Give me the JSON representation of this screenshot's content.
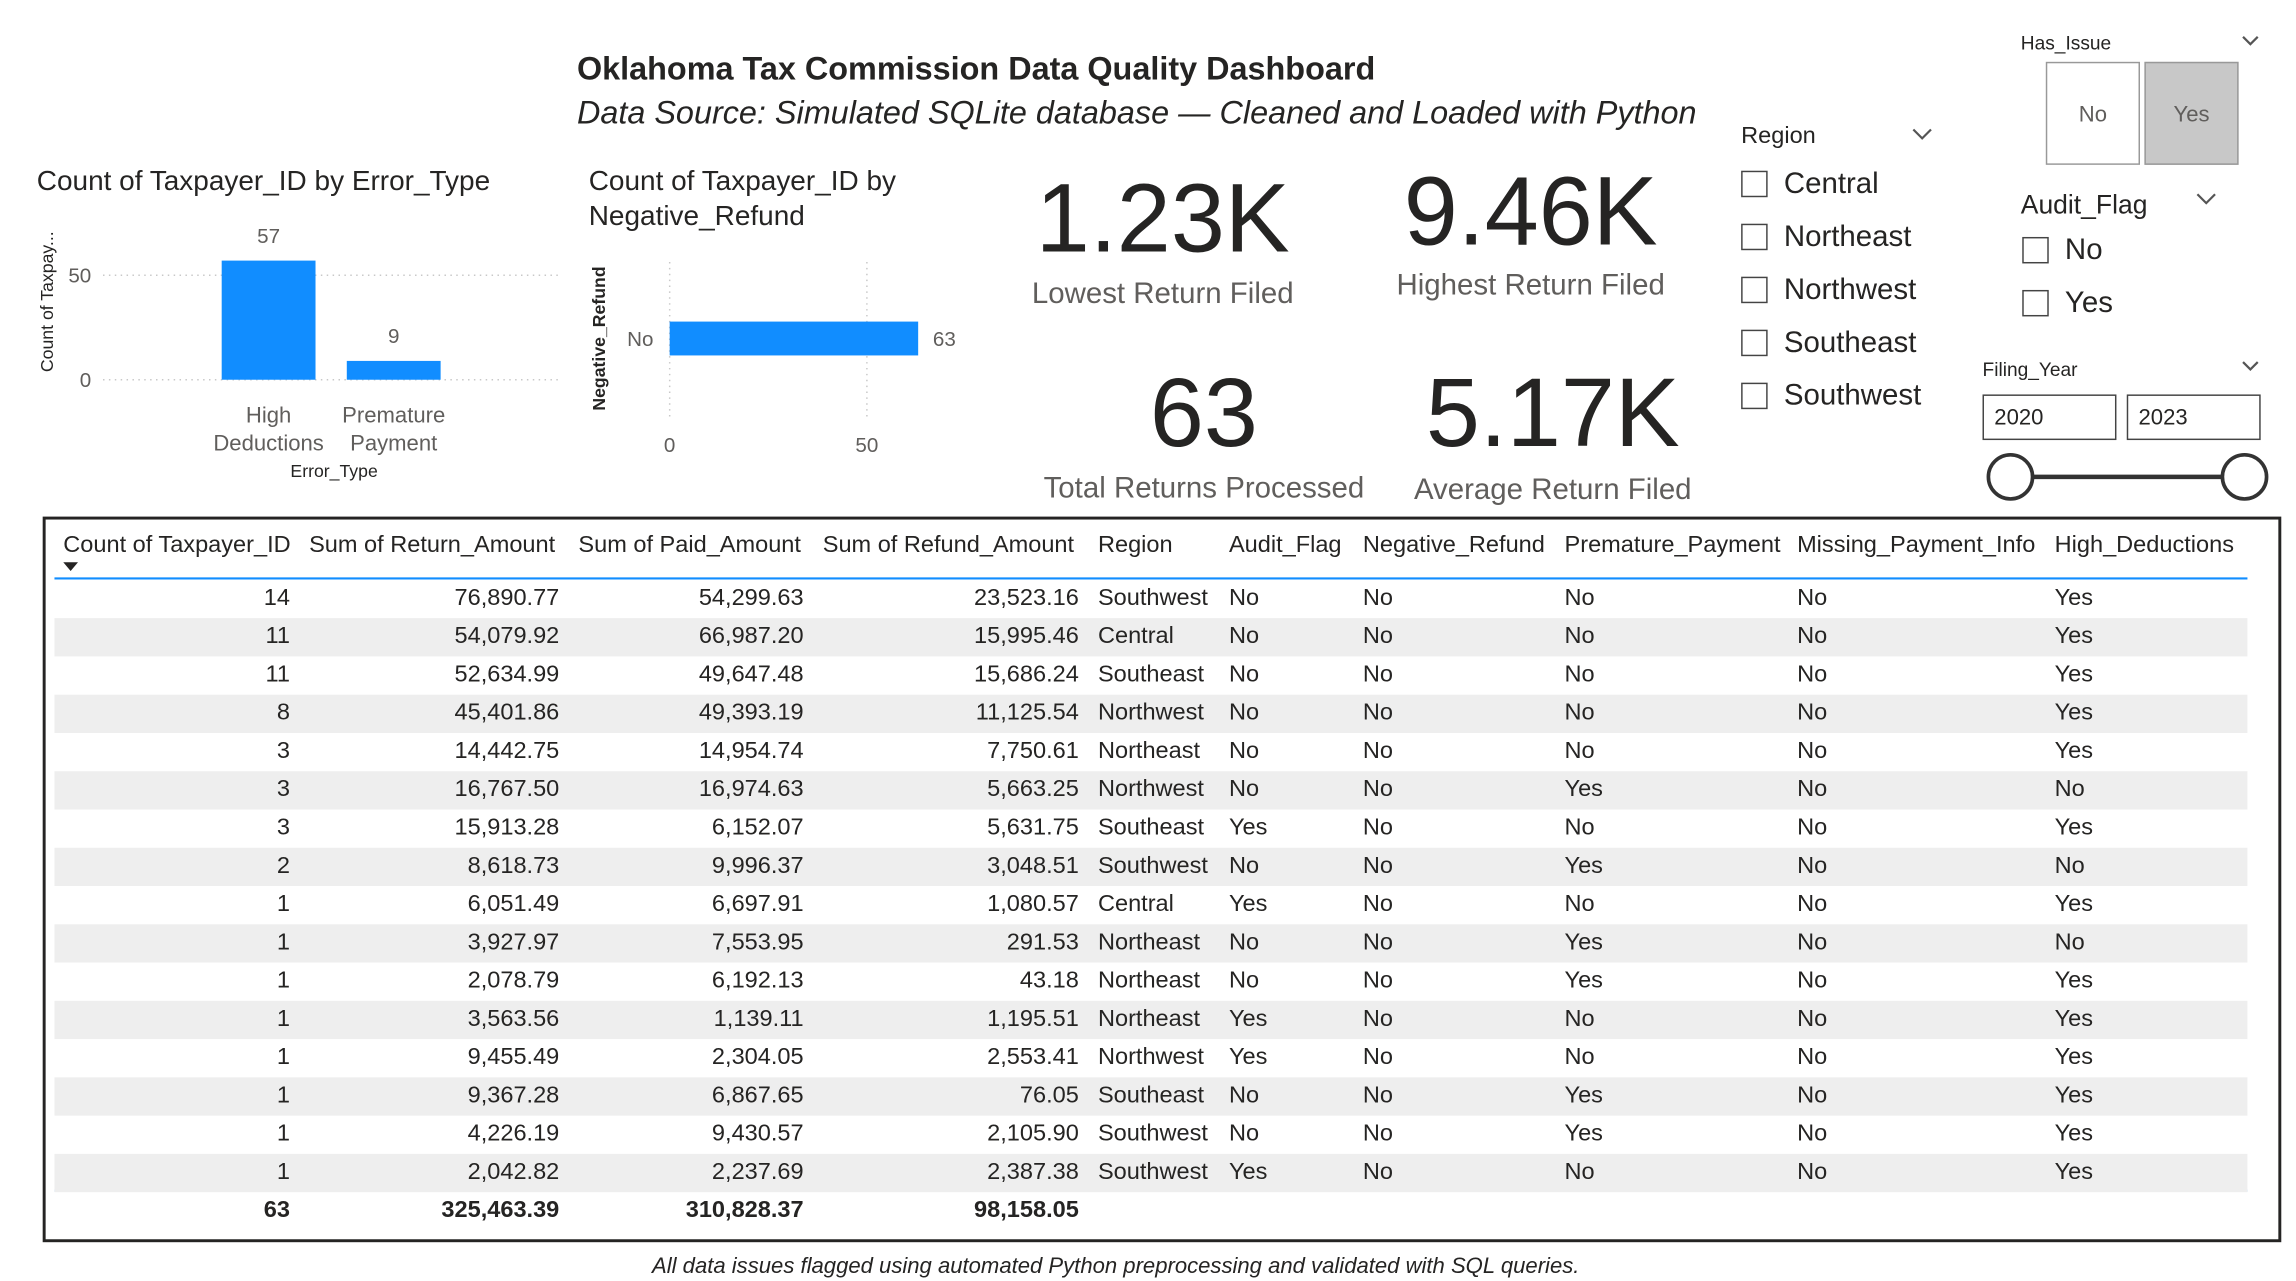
{
  "header": {
    "title": "Oklahoma Tax Commission Data Quality Dashboard",
    "subtitle": "Data Source: Simulated SQLite database — Cleaned and Loaded with Python"
  },
  "chart_data": [
    {
      "type": "bar",
      "title": "Count of Taxpayer_ID by Error_Type",
      "x_label": "Error_Type",
      "y_label": "Count of Taxpay...",
      "categories": [
        "High Deductions",
        "Premature Payment"
      ],
      "values": [
        57,
        9
      ],
      "color": "#118DFF",
      "ylim": [
        0,
        60
      ],
      "yticks": [
        0,
        50
      ],
      "grid": true,
      "data_labels": true
    },
    {
      "type": "bar",
      "orientation": "horizontal",
      "title": "Count of Taxpayer_ID by Negative_Refund",
      "y_label": "Negative_Refund",
      "categories": [
        "No"
      ],
      "values": [
        63
      ],
      "color": "#118DFF",
      "xlim": [
        0,
        65
      ],
      "xticks": [
        0,
        50
      ],
      "grid": true,
      "data_labels": true
    }
  ],
  "cards": [
    {
      "value": "1.23K",
      "label": "Lowest Return Filed"
    },
    {
      "value": "9.46K",
      "label": "Highest Return Filed"
    },
    {
      "value": "63",
      "label": "Total Returns Processed"
    },
    {
      "value": "5.17K",
      "label": "Average Return Filed"
    }
  ],
  "slicers": {
    "has_issue": {
      "title": "Has_Issue",
      "options": [
        "No",
        "Yes"
      ],
      "selected": [
        false,
        true
      ]
    },
    "region": {
      "title": "Region",
      "options": [
        "Central",
        "Northeast",
        "Northwest",
        "Southeast",
        "Southwest"
      ]
    },
    "audit_flag": {
      "title": "Audit_Flag",
      "options": [
        "No",
        "Yes"
      ]
    },
    "filing_year": {
      "title": "Filing_Year",
      "range": [
        2020,
        2023
      ]
    }
  },
  "table": {
    "columns": [
      "Count of Taxpayer_ID",
      "Sum of Return_Amount",
      "Sum of Paid_Amount",
      "Sum of Refund_Amount",
      "Region",
      "Audit_Flag",
      "Negative_Refund",
      "Premature_Payment",
      "Missing_Payment_Info",
      "High_Deductions"
    ],
    "rows": [
      [
        "14",
        "76,890.77",
        "54,299.63",
        "23,523.16",
        "Southwest",
        "No",
        "No",
        "No",
        "No",
        "Yes"
      ],
      [
        "11",
        "54,079.92",
        "66,987.20",
        "15,995.46",
        "Central",
        "No",
        "No",
        "No",
        "No",
        "Yes"
      ],
      [
        "11",
        "52,634.99",
        "49,647.48",
        "15,686.24",
        "Southeast",
        "No",
        "No",
        "No",
        "No",
        "Yes"
      ],
      [
        "8",
        "45,401.86",
        "49,393.19",
        "11,125.54",
        "Northwest",
        "No",
        "No",
        "No",
        "No",
        "Yes"
      ],
      [
        "3",
        "14,442.75",
        "14,954.74",
        "7,750.61",
        "Northeast",
        "No",
        "No",
        "No",
        "No",
        "Yes"
      ],
      [
        "3",
        "16,767.50",
        "16,974.63",
        "5,663.25",
        "Northwest",
        "No",
        "No",
        "Yes",
        "No",
        "No"
      ],
      [
        "3",
        "15,913.28",
        "6,152.07",
        "5,631.75",
        "Southeast",
        "Yes",
        "No",
        "No",
        "No",
        "Yes"
      ],
      [
        "2",
        "8,618.73",
        "9,996.37",
        "3,048.51",
        "Southwest",
        "No",
        "No",
        "Yes",
        "No",
        "No"
      ],
      [
        "1",
        "6,051.49",
        "6,697.91",
        "1,080.57",
        "Central",
        "Yes",
        "No",
        "No",
        "No",
        "Yes"
      ],
      [
        "1",
        "3,927.97",
        "7,553.95",
        "291.53",
        "Northeast",
        "No",
        "No",
        "Yes",
        "No",
        "No"
      ],
      [
        "1",
        "2,078.79",
        "6,192.13",
        "43.18",
        "Northeast",
        "No",
        "No",
        "Yes",
        "No",
        "Yes"
      ],
      [
        "1",
        "3,563.56",
        "1,139.11",
        "1,195.51",
        "Northeast",
        "Yes",
        "No",
        "No",
        "No",
        "Yes"
      ],
      [
        "1",
        "9,455.49",
        "2,304.05",
        "2,553.41",
        "Northwest",
        "Yes",
        "No",
        "No",
        "No",
        "Yes"
      ],
      [
        "1",
        "9,367.28",
        "6,867.65",
        "76.05",
        "Southeast",
        "No",
        "No",
        "Yes",
        "No",
        "Yes"
      ],
      [
        "1",
        "4,226.19",
        "9,430.57",
        "2,105.90",
        "Southwest",
        "No",
        "No",
        "Yes",
        "No",
        "Yes"
      ],
      [
        "1",
        "2,042.82",
        "2,237.69",
        "2,387.38",
        "Southwest",
        "Yes",
        "No",
        "No",
        "No",
        "Yes"
      ]
    ],
    "totals": [
      "63",
      "325,463.39",
      "310,828.37",
      "98,158.05"
    ]
  },
  "footer": "All data issues flagged using automated Python preprocessing and validated with SQL queries."
}
